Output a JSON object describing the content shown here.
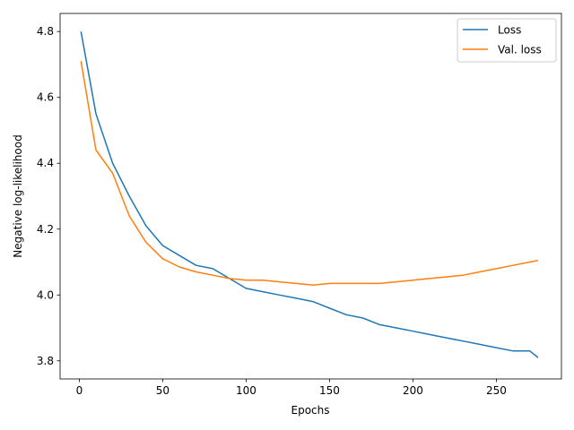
{
  "chart_data": {
    "type": "line",
    "title": "",
    "xlabel": "Epochs",
    "ylabel": "Negative log-likelihood",
    "xlim": [
      -11.5,
      289
    ],
    "ylim": [
      3.745,
      4.855
    ],
    "xticks": [
      0,
      50,
      100,
      150,
      200,
      250
    ],
    "yticks": [
      3.8,
      4.0,
      4.2,
      4.4,
      4.6,
      4.8
    ],
    "xtick_labels": [
      "0",
      "50",
      "100",
      "150",
      "200",
      "250"
    ],
    "ytick_labels": [
      "3.8",
      "4.0",
      "4.2",
      "4.4",
      "4.6",
      "4.8"
    ],
    "grid": false,
    "legend_position": "top-right",
    "x": [
      1,
      10,
      20,
      30,
      40,
      50,
      60,
      70,
      80,
      90,
      100,
      110,
      120,
      130,
      140,
      150,
      160,
      170,
      180,
      190,
      200,
      210,
      220,
      230,
      240,
      250,
      260,
      270,
      275
    ],
    "series": [
      {
        "name": "Loss",
        "color": "#1f77b4",
        "values": [
          4.8,
          4.55,
          4.4,
          4.3,
          4.21,
          4.15,
          4.12,
          4.09,
          4.08,
          4.05,
          4.02,
          4.01,
          4.0,
          3.99,
          3.98,
          3.96,
          3.94,
          3.93,
          3.91,
          3.9,
          3.89,
          3.88,
          3.87,
          3.86,
          3.85,
          3.84,
          3.83,
          3.83,
          3.81
        ]
      },
      {
        "name": "Val. loss",
        "color": "#ff7f0e",
        "values": [
          4.71,
          4.44,
          4.37,
          4.24,
          4.16,
          4.11,
          4.085,
          4.07,
          4.06,
          4.05,
          4.045,
          4.045,
          4.04,
          4.035,
          4.03,
          4.035,
          4.035,
          4.035,
          4.035,
          4.04,
          4.045,
          4.05,
          4.055,
          4.06,
          4.07,
          4.08,
          4.09,
          4.1,
          4.105
        ]
      }
    ]
  }
}
